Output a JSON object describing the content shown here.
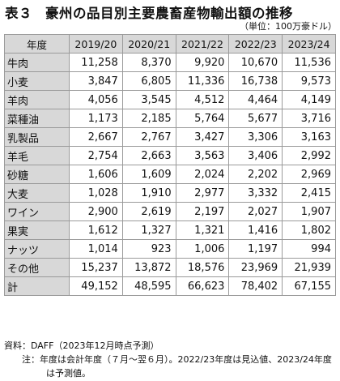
{
  "title": {
    "number": "表３",
    "text": "豪州の品目別主要農畜産物輸出額の推移"
  },
  "unit": "（単位：100万豪ドル）",
  "table": {
    "header_label": "年度",
    "columns": [
      "2019/20",
      "2020/21",
      "2021/22",
      "2022/23",
      "2023/24"
    ],
    "rows": [
      {
        "label": "牛肉",
        "values": [
          "11,258",
          "8,370",
          "9,920",
          "10,670",
          "11,536"
        ]
      },
      {
        "label": "小麦",
        "values": [
          "3,847",
          "6,805",
          "11,336",
          "16,738",
          "9,573"
        ]
      },
      {
        "label": "羊肉",
        "values": [
          "4,056",
          "3,545",
          "4,512",
          "4,464",
          "4,149"
        ]
      },
      {
        "label": "菜種油",
        "values": [
          "1,173",
          "2,185",
          "5,764",
          "5,677",
          "3,716"
        ]
      },
      {
        "label": "乳製品",
        "values": [
          "2,667",
          "2,767",
          "3,427",
          "3,306",
          "3,163"
        ]
      },
      {
        "label": "羊毛",
        "values": [
          "2,754",
          "2,663",
          "3,563",
          "3,406",
          "2,992"
        ]
      },
      {
        "label": "砂糖",
        "values": [
          "1,606",
          "1,609",
          "2,024",
          "2,202",
          "2,969"
        ]
      },
      {
        "label": "大麦",
        "values": [
          "1,028",
          "1,910",
          "2,977",
          "3,332",
          "2,415"
        ]
      },
      {
        "label": "ワイン",
        "values": [
          "2,900",
          "2,619",
          "2,197",
          "2,027",
          "1,907"
        ]
      },
      {
        "label": "果実",
        "values": [
          "1,612",
          "1,327",
          "1,321",
          "1,416",
          "1,802"
        ]
      },
      {
        "label": "ナッツ",
        "values": [
          "1,014",
          "923",
          "1,006",
          "1,197",
          "994"
        ]
      },
      {
        "label": "その他",
        "values": [
          "15,237",
          "13,872",
          "18,576",
          "23,969",
          "21,939"
        ]
      },
      {
        "label": "計",
        "values": [
          "49,152",
          "48,595",
          "66,623",
          "78,402",
          "67,155"
        ]
      }
    ]
  },
  "notes": {
    "source": "資料：DAFF（2023年12月時点予測）",
    "note": "注：年度は会計年度（７月～翌６月）。2022/23年度は見込値、2023/24年度は予測値。"
  }
}
